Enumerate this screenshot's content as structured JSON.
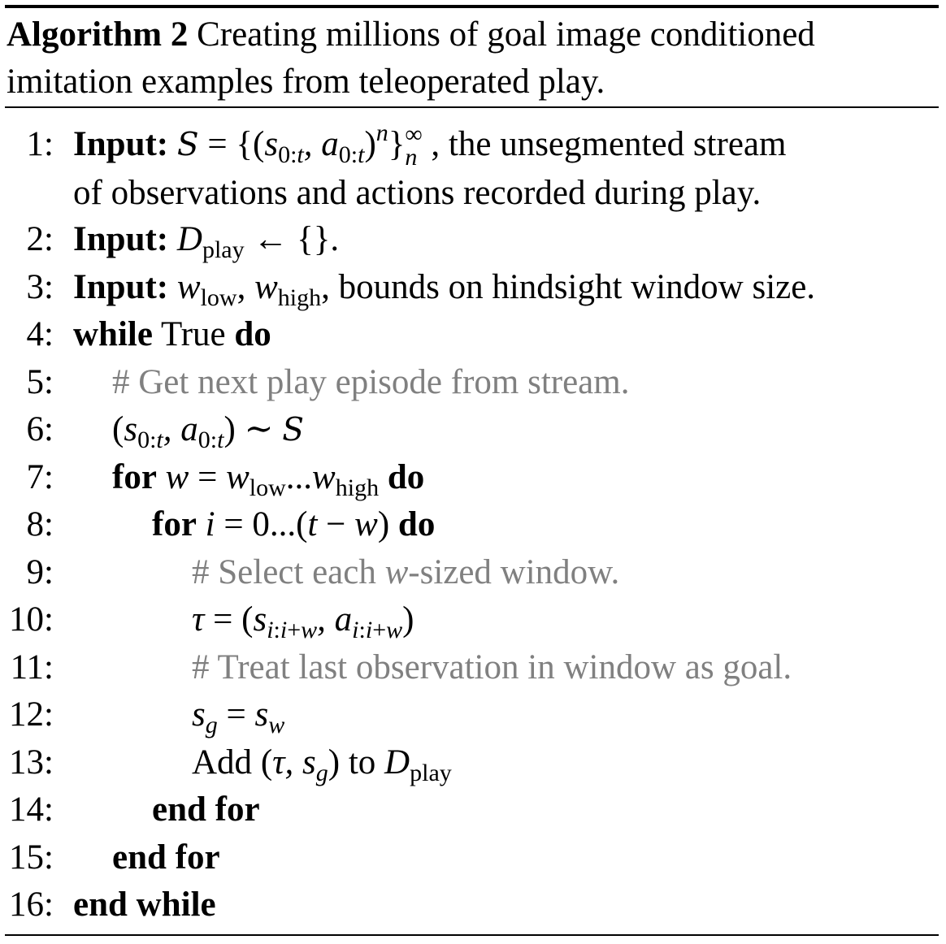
{
  "caption": {
    "label": "Algorithm 2",
    "text": "Creating millions of goal image conditioned",
    "text_line2": "imitation examples from teleoperated play."
  },
  "lines": [
    {
      "num": "1:",
      "kw": "Input:",
      "desc": ", the unsegmented stream",
      "cont": "of observations and actions recorded during play."
    },
    {
      "num": "2:",
      "kw": "Input:",
      "tail": "."
    },
    {
      "num": "3:",
      "kw": "Input:",
      "desc": ", bounds on hindsight window size."
    },
    {
      "num": "4:",
      "kw": "while",
      "text": "True",
      "kw2": "do"
    },
    {
      "num": "5:",
      "comment": "# Get next play episode from stream."
    },
    {
      "num": "6:"
    },
    {
      "num": "7:",
      "kw": "for",
      "kw2": "do"
    },
    {
      "num": "8:",
      "kw": "for",
      "kw2": "do"
    },
    {
      "num": "9:",
      "comment_a": "# Select each ",
      "comment_b": "-sized window."
    },
    {
      "num": "10:"
    },
    {
      "num": "11:",
      "comment": "# Treat last observation in window as goal."
    },
    {
      "num": "12:"
    },
    {
      "num": "13:",
      "text": "Add",
      "mid": "to"
    },
    {
      "num": "14:",
      "kw": "end for"
    },
    {
      "num": "15:",
      "kw": "end for"
    },
    {
      "num": "16:",
      "kw": "end while"
    }
  ]
}
